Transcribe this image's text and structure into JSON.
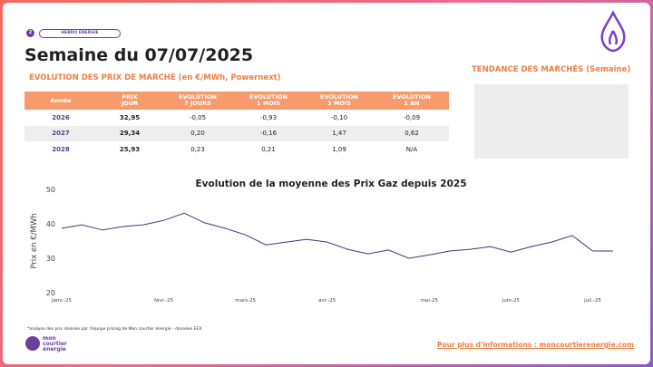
{
  "header": {
    "badge": "2",
    "tag": "HEBDO ÉNERGIE",
    "title": "Semaine du 07/07/2025",
    "subtitle": "EVOLUTION DES PRIX DE MARCHÉ (en €/MWh, Powernext)"
  },
  "trend": {
    "title": "TENDANCE DES MARCHÉS (Semaine)"
  },
  "table": {
    "header": [
      [
        "Année"
      ],
      [
        "PRIX",
        "JOUR"
      ],
      [
        "EVOLUTION",
        "7 JOURS"
      ],
      [
        "EVOLUTION",
        "1 MOIS"
      ],
      [
        "EVOLUTION",
        "3 MOIS"
      ],
      [
        "EVOLUTION",
        "1 AN"
      ]
    ],
    "rows": [
      [
        "2026",
        "32,95",
        "-0,05",
        "-0,93",
        "-0,10",
        "-0,09"
      ],
      [
        "2027",
        "29,34",
        "0,20",
        "-0,16",
        "1,47",
        "0,62"
      ],
      [
        "2028",
        "25,93",
        "0,23",
        "0,21",
        "1,09",
        "N/A"
      ]
    ]
  },
  "chart_data": {
    "type": "line",
    "title": "Evolution de la moyenne des Prix Gaz depuis 2025",
    "y_label": "Prix en €/MWh",
    "categories": [
      "janv.-25",
      null,
      null,
      null,
      null,
      "févr.-25",
      null,
      null,
      null,
      "mars-25",
      null,
      null,
      null,
      "avr.-25",
      null,
      null,
      null,
      null,
      "mai-25",
      null,
      null,
      null,
      "juin-25",
      null,
      null,
      null,
      "juil.-25",
      null
    ],
    "series": [
      {
        "name": "Prix Gaz",
        "color": "#3d3a7c",
        "values": [
          38.7,
          39.7,
          38.2,
          39.2,
          39.7,
          41.0,
          43.1,
          40.3,
          38.7,
          36.8,
          33.9,
          34.7,
          35.5,
          34.7,
          32.6,
          31.3,
          32.4,
          30.0,
          31.0,
          32.1,
          32.6,
          33.4,
          31.8,
          33.4,
          34.7,
          36.6,
          32.1,
          32.1
        ]
      }
    ],
    "ylim": [
      20,
      50
    ],
    "yticks": [
      20,
      30,
      40,
      50
    ],
    "grid": false
  },
  "footer": {
    "note": "*analyse des prix réalisée par l'équipe pricing de Mon courtier énergie -  données EEX",
    "brand": "mon courtier énergie",
    "link": "Pour plus d'informations : moncourtierenergie.com"
  }
}
